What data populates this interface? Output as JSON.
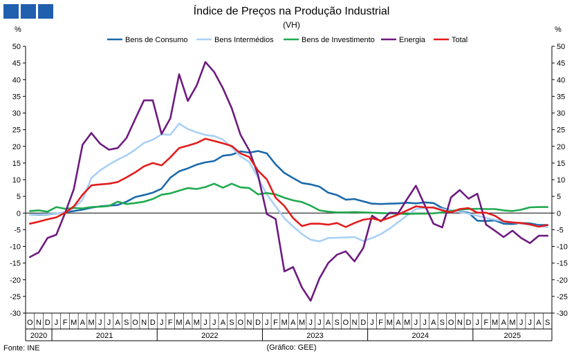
{
  "title": "Índice de Preços na Produção Industrial",
  "subtitle": "(VH)",
  "unit_left": "%",
  "unit_right": "%",
  "source": "Fonte: INE",
  "credit": "(Gráfico: GEE)",
  "logo_color": "#1f5fae",
  "chart_data": {
    "type": "line",
    "title": "Índice de Preços na Produção Industrial",
    "subtitle": "(VH)",
    "ylabel": "%",
    "ylim": [
      -30,
      50
    ],
    "yticks": [
      -30,
      -25,
      -20,
      -15,
      -10,
      -5,
      0,
      5,
      10,
      15,
      20,
      25,
      30,
      35,
      40,
      45,
      50
    ],
    "grid": false,
    "legend_position": "top",
    "months": [
      "O",
      "N",
      "D",
      "J",
      "F",
      "M",
      "A",
      "M",
      "J",
      "J",
      "A",
      "S",
      "O",
      "N",
      "D",
      "J",
      "F",
      "M",
      "A",
      "M",
      "J",
      "J",
      "A",
      "S",
      "O",
      "N",
      "D",
      "J",
      "F",
      "M",
      "A",
      "M",
      "J",
      "J",
      "A",
      "S",
      "O",
      "N",
      "D",
      "J",
      "F",
      "M",
      "A",
      "M",
      "J",
      "J",
      "A",
      "S",
      "O",
      "N",
      "D",
      "J",
      "F",
      "M",
      "A",
      "M",
      "J",
      "J",
      "A",
      "S"
    ],
    "years": [
      {
        "label": "2020",
        "start": 0,
        "end": 2
      },
      {
        "label": "2021",
        "start": 3,
        "end": 14
      },
      {
        "label": "2022",
        "start": 15,
        "end": 26
      },
      {
        "label": "2023",
        "start": 27,
        "end": 38
      },
      {
        "label": "2024",
        "start": 39,
        "end": 50
      },
      {
        "label": "2025",
        "start": 51,
        "end": 59
      }
    ],
    "series": [
      {
        "name": "Bens de Consumo",
        "color": "#1a6aaa",
        "values": [
          -0.5,
          -0.5,
          -0.4,
          -0.2,
          0.3,
          0.6,
          1.0,
          1.6,
          2.0,
          2.2,
          2.4,
          3.4,
          4.8,
          5.4,
          6.1,
          7.3,
          10.6,
          12.5,
          13.4,
          14.5,
          15.2,
          15.6,
          17.2,
          17.5,
          18.5,
          18.1,
          18.6,
          17.9,
          14.6,
          12.0,
          10.5,
          9.0,
          8.6,
          7.9,
          6.1,
          5.4,
          4.0,
          4.2,
          3.5,
          2.8,
          2.7,
          2.8,
          2.9,
          3.1,
          2.9,
          3.2,
          3.0,
          1.5,
          0.8,
          0.4,
          0.1,
          -2.3,
          -2.4,
          -2.2,
          -3.2,
          -3.3,
          -3.0,
          -3.1,
          -3.6,
          -3.6
        ]
      },
      {
        "name": "Bens Intermédios",
        "color": "#a9d0f5",
        "values": [
          -0.5,
          -0.4,
          -0.3,
          -0.2,
          0.3,
          1.5,
          4.0,
          10.5,
          12.8,
          14.5,
          16.0,
          17.3,
          19.0,
          21.0,
          22.0,
          23.6,
          23.5,
          26.8,
          25.2,
          24.2,
          23.4,
          23.1,
          22.0,
          19.7,
          17.0,
          15.3,
          10.6,
          5.6,
          2.0,
          -1.6,
          -4.0,
          -6.3,
          -8.0,
          -8.5,
          -7.5,
          -7.4,
          -7.3,
          -7.2,
          -8.4,
          -7.5,
          -6.3,
          -4.7,
          -2.7,
          -0.7,
          1.2,
          1.5,
          1.8,
          1.2,
          0.8,
          0.3,
          -0.2,
          -0.8,
          -1.5,
          -2.0,
          -2.5,
          -2.8,
          -3.2,
          -3.5,
          -4.0,
          -4.2
        ]
      },
      {
        "name": "Bens de Investimento",
        "color": "#1faa4f",
        "values": [
          0.6,
          0.8,
          0.4,
          1.8,
          1.3,
          1.5,
          1.4,
          1.8,
          1.9,
          2.1,
          3.4,
          2.7,
          3.0,
          3.4,
          4.2,
          5.5,
          5.9,
          6.7,
          7.5,
          7.2,
          7.8,
          8.8,
          7.6,
          8.8,
          7.7,
          7.5,
          5.6,
          6.0,
          5.6,
          4.6,
          3.8,
          3.3,
          2.2,
          0.8,
          0.4,
          0.2,
          0.2,
          0.3,
          0.2,
          0.1,
          0.0,
          -0.1,
          -0.2,
          -0.3,
          -0.2,
          -0.2,
          -0.1,
          0.2,
          0.6,
          1.0,
          1.2,
          1.3,
          1.2,
          1.2,
          0.8,
          0.6,
          1.0,
          1.7,
          1.8,
          1.8
        ]
      },
      {
        "name": "Energia",
        "color": "#6d1a7f",
        "values": [
          -13.2,
          -11.8,
          -7.5,
          -6.5,
          0.0,
          7.2,
          20.5,
          24.0,
          20.8,
          19.0,
          19.5,
          22.5,
          28.2,
          33.8,
          33.8,
          23.7,
          28.4,
          41.6,
          33.6,
          38.2,
          45.3,
          42.3,
          37.4,
          31.4,
          23.5,
          18.8,
          11.4,
          -0.3,
          -1.8,
          -17.5,
          -16.2,
          -22.3,
          -26.3,
          -19.6,
          -15.0,
          -12.5,
          -11.5,
          -14.5,
          -10.5,
          -0.8,
          -2.5,
          0.1,
          0.0,
          4.2,
          8.2,
          2.4,
          -3.2,
          -4.3,
          4.7,
          6.9,
          4.3,
          5.8,
          -3.5,
          -5.3,
          -7.2,
          -5.3,
          -7.5,
          -9.0,
          -6.8,
          -6.8
        ]
      },
      {
        "name": "Total",
        "color": "#e31b1b",
        "values": [
          -3.2,
          -2.6,
          -1.9,
          -1.3,
          0.1,
          2.0,
          5.5,
          8.3,
          8.6,
          8.8,
          9.3,
          10.7,
          12.2,
          14.0,
          15.0,
          14.3,
          16.7,
          19.5,
          20.2,
          21.0,
          22.3,
          21.6,
          20.9,
          20.1,
          17.9,
          16.8,
          12.7,
          10.1,
          4.6,
          2.1,
          -1.5,
          -3.9,
          -3.2,
          -3.2,
          -3.5,
          -3.0,
          -4.2,
          -3.0,
          -2.0,
          -1.6,
          -2.3,
          -1.4,
          -0.4,
          0.8,
          2.0,
          1.7,
          1.6,
          0.8,
          0.2,
          1.2,
          1.5,
          0.1,
          0.1,
          -0.8,
          -2.5,
          -2.8,
          -3.0,
          -3.4,
          -4.1,
          -3.6
        ]
      }
    ]
  }
}
